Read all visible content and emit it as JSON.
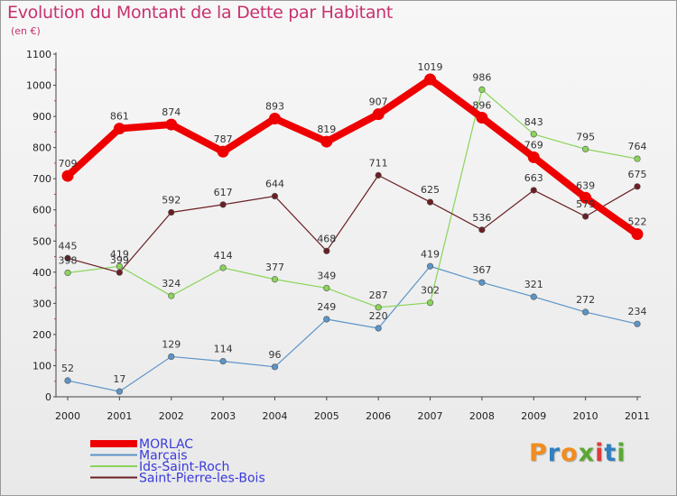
{
  "logo": {
    "text": "Proxiti",
    "colors": [
      "#f28c1e",
      "#2f7fc1",
      "#f28c1e",
      "#5aa832",
      "#d93b3b",
      "#2f7fc1",
      "#5aa832"
    ]
  },
  "chart_data": {
    "type": "line",
    "title": "Evolution du Montant de la Dette par Habitant",
    "subtitle": "(en €)",
    "xlabel": "",
    "ylabel": "",
    "x": [
      "2000",
      "2001",
      "2002",
      "2003",
      "2004",
      "2005",
      "2006",
      "2007",
      "2008",
      "2009",
      "2010",
      "2011"
    ],
    "ylim": [
      0,
      1100
    ],
    "yticks": [
      0,
      100,
      200,
      300,
      400,
      500,
      600,
      700,
      800,
      900,
      1000,
      1100
    ],
    "grid": false,
    "legend_position": "bottom-left",
    "series": [
      {
        "name": "MORLAC",
        "color": "#ee0000",
        "values": [
          709,
          861,
          874,
          787,
          893,
          819,
          907,
          1019,
          896,
          769,
          639,
          522
        ]
      },
      {
        "name": "Marçais",
        "color": "#5b94c8",
        "values": [
          52,
          17,
          129,
          114,
          96,
          249,
          220,
          419,
          367,
          321,
          272,
          234
        ]
      },
      {
        "name": "Ids-Saint-Roch",
        "color": "#8ad45a",
        "values": [
          398,
          419,
          324,
          414,
          377,
          349,
          287,
          302,
          986,
          843,
          795,
          764
        ]
      },
      {
        "name": "Saint-Pierre-les-Bois",
        "color": "#6b1f24",
        "values": [
          445,
          399,
          592,
          617,
          644,
          468,
          711,
          625,
          536,
          663,
          579,
          675
        ]
      }
    ]
  }
}
